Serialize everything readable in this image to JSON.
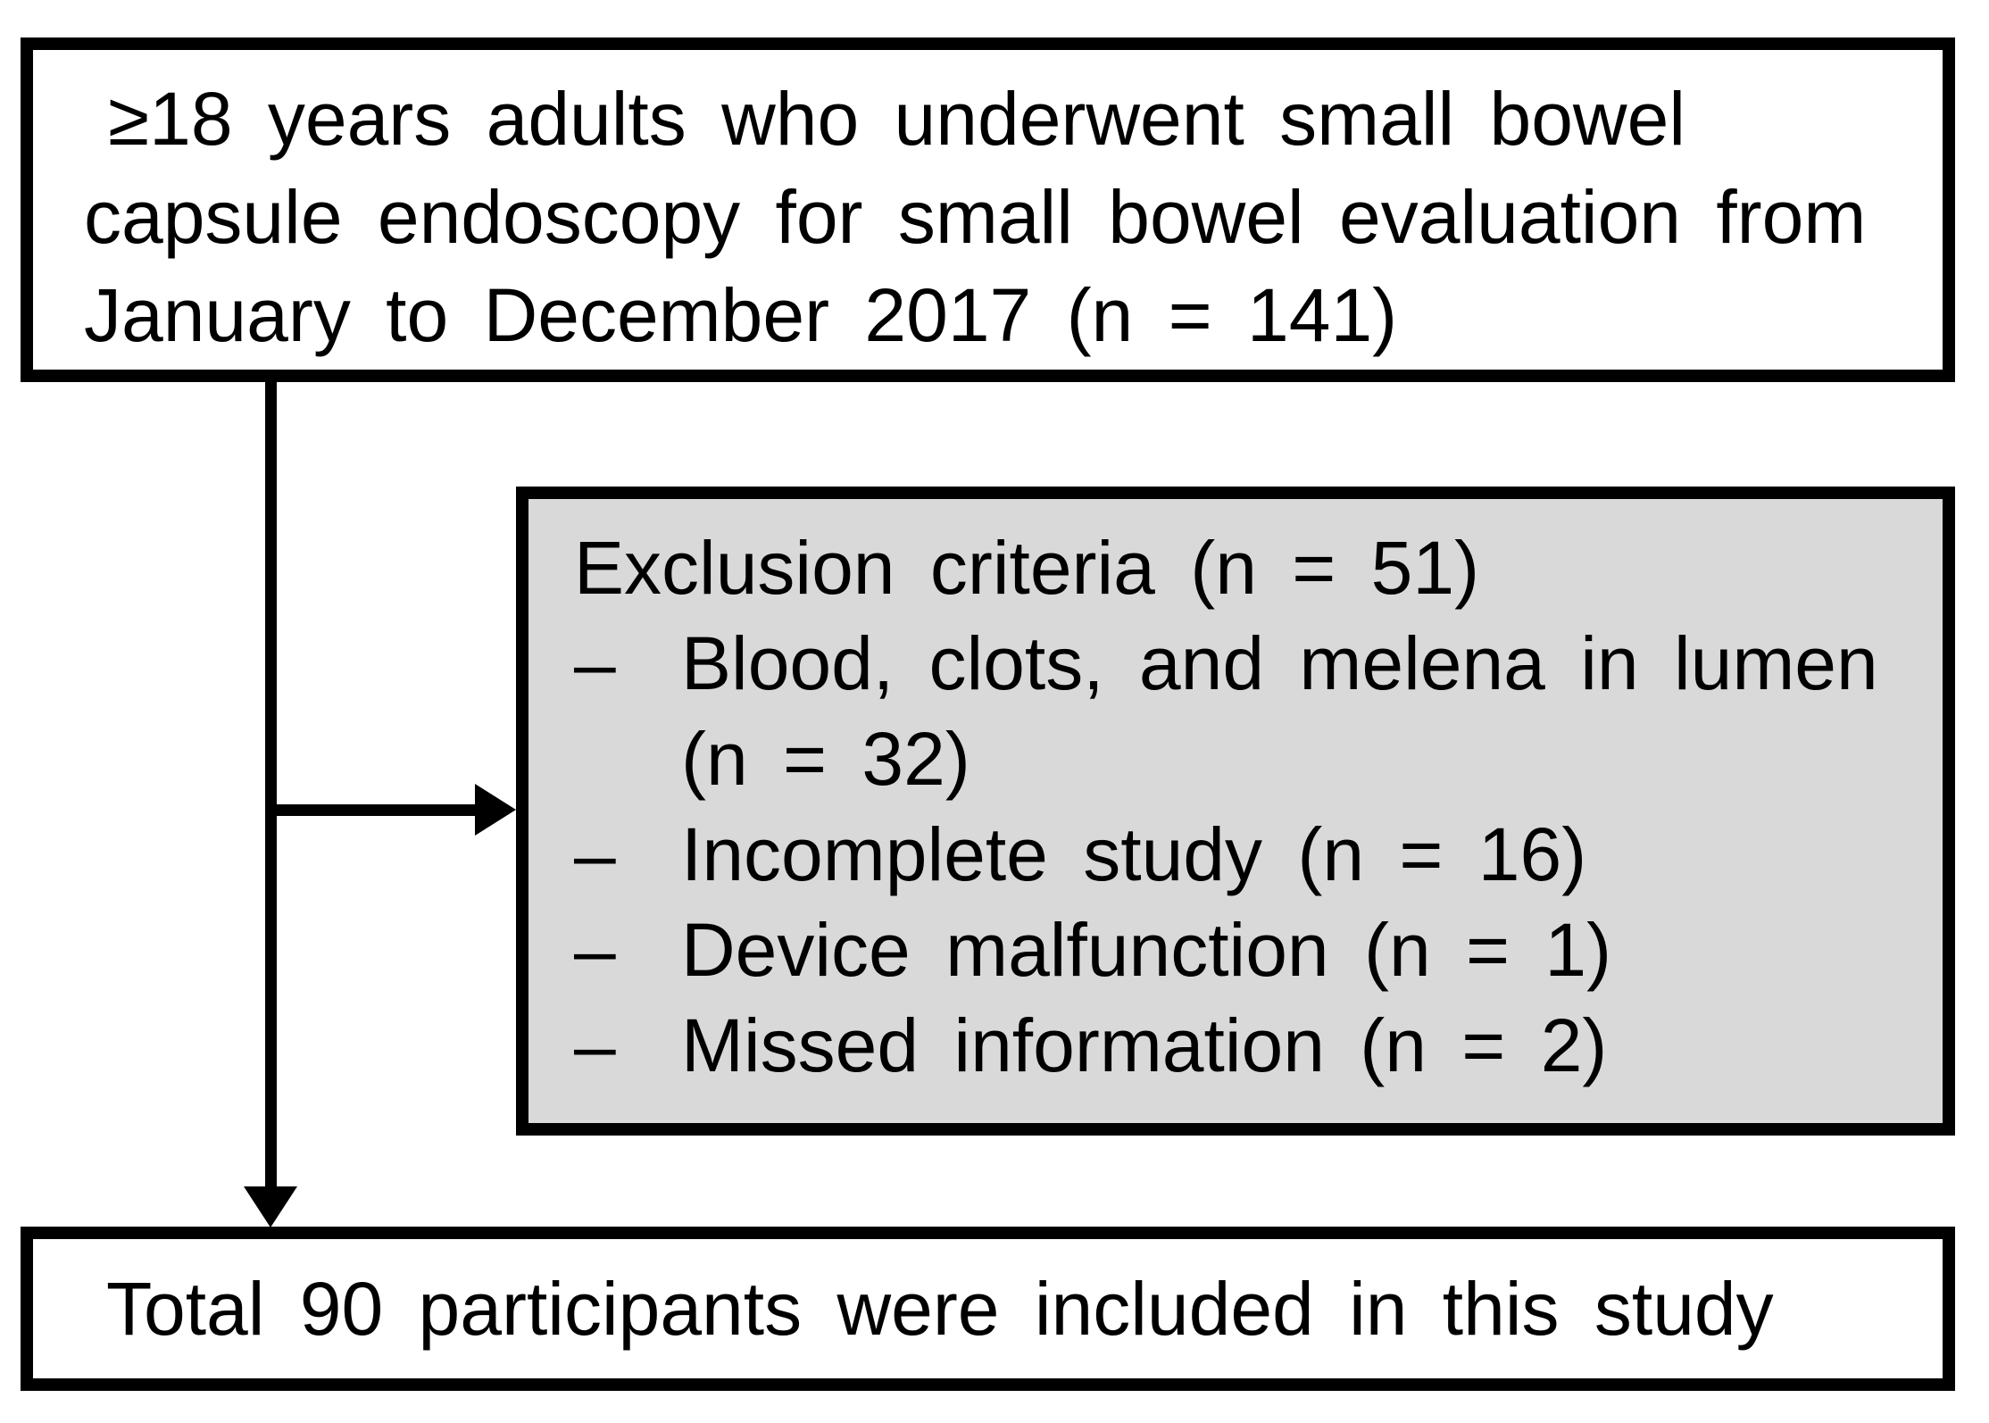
{
  "figure": {
    "background_color": "#ffffff",
    "border_color": "#000000",
    "text_color": "#000000",
    "exclusion_box_bg_color": "#d9d9d9"
  },
  "top_box": {
    "full_text": "≥18 years adults who underwent small bowel capsule endoscopy for small bowel evaluation from January to December 2017 (n = 141)",
    "lines": [
      "≥18 years adults who underwent small bowel",
      "capsule endoscopy for small bowel evaluation from",
      "January to December 2017 (n = 141)"
    ],
    "n": 141
  },
  "exclusion_box": {
    "heading": "Exclusion criteria (n = 51)",
    "n": 51,
    "items": [
      {
        "dash": "–",
        "line1": "Blood, clots, and melena in lumen",
        "line2": "(n = 32)",
        "n": 32
      },
      {
        "dash": "–",
        "line1": "Incomplete study (n = 16)",
        "n": 16
      },
      {
        "dash": "–",
        "line1": "Device malfunction (n = 1)",
        "n": 1
      },
      {
        "dash": "–",
        "line1": "Missed information (n = 2)",
        "n": 2
      }
    ]
  },
  "bottom_box": {
    "text": "Total 90 participants were included in this study",
    "n": 90
  }
}
